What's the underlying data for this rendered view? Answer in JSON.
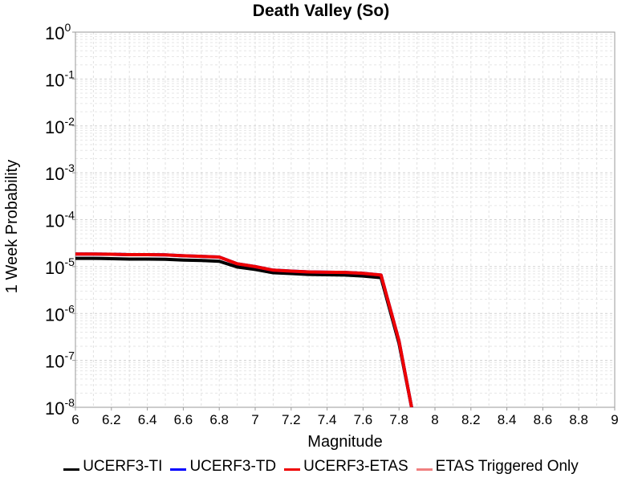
{
  "chart_data": {
    "type": "line",
    "title": "Death Valley (So)",
    "xlabel": "Magnitude",
    "ylabel": "1 Week Probability",
    "xlim": [
      6,
      9
    ],
    "ylim": [
      1e-08,
      1
    ],
    "yscale": "log",
    "grid": true,
    "legend_position": "bottom",
    "x_ticks": [
      "6",
      "6.2",
      "6.4",
      "6.6",
      "6.8",
      "7",
      "7.2",
      "7.4",
      "7.6",
      "7.8",
      "8",
      "8.2",
      "8.4",
      "8.6",
      "8.8",
      "9"
    ],
    "y_ticks": [
      {
        "base": "10",
        "exp": "0"
      },
      {
        "base": "10",
        "exp": "-1"
      },
      {
        "base": "10",
        "exp": "-2"
      },
      {
        "base": "10",
        "exp": "-3"
      },
      {
        "base": "10",
        "exp": "-4"
      },
      {
        "base": "10",
        "exp": "-5"
      },
      {
        "base": "10",
        "exp": "-6"
      },
      {
        "base": "10",
        "exp": "-7"
      },
      {
        "base": "10",
        "exp": "-8"
      }
    ],
    "series": [
      {
        "name": "UCERF3-TI",
        "color": "#000000",
        "x": [
          6.0,
          6.1,
          6.2,
          6.3,
          6.4,
          6.5,
          6.6,
          6.7,
          6.8,
          6.9,
          7.0,
          7.1,
          7.2,
          7.3,
          7.4,
          7.5,
          7.6,
          7.7,
          7.8,
          7.87
        ],
        "y": [
          1.5e-05,
          1.5e-05,
          1.48e-05,
          1.45e-05,
          1.45e-05,
          1.43e-05,
          1.38e-05,
          1.35e-05,
          1.3e-05,
          9.8e-06,
          8.7e-06,
          7.4e-06,
          7.1e-06,
          6.8e-06,
          6.7e-06,
          6.6e-06,
          6.3e-06,
          5.8e-06,
          2.3e-07,
          1e-08
        ]
      },
      {
        "name": "UCERF3-TD",
        "color": "#0000ff",
        "x": [
          6.0,
          6.1,
          6.2,
          6.3,
          6.4,
          6.5,
          6.6,
          6.7,
          6.8,
          6.9,
          7.0,
          7.1,
          7.2,
          7.3,
          7.4,
          7.5,
          7.6,
          7.7,
          7.8,
          7.87
        ],
        "y": [
          1.85e-05,
          1.85e-05,
          1.83e-05,
          1.8e-05,
          1.8e-05,
          1.78e-05,
          1.7e-05,
          1.65e-05,
          1.6e-05,
          1.15e-05,
          1e-05,
          8.4e-06,
          8e-06,
          7.7e-06,
          7.6e-06,
          7.5e-06,
          7.2e-06,
          6.6e-06,
          2.6e-07,
          1e-08
        ]
      },
      {
        "name": "UCERF3-ETAS",
        "color": "#ee0000",
        "x": [
          6.0,
          6.1,
          6.2,
          6.3,
          6.4,
          6.5,
          6.6,
          6.7,
          6.8,
          6.9,
          7.0,
          7.1,
          7.2,
          7.3,
          7.4,
          7.5,
          7.6,
          7.7,
          7.8,
          7.87
        ],
        "y": [
          1.85e-05,
          1.85e-05,
          1.83e-05,
          1.8e-05,
          1.8e-05,
          1.78e-05,
          1.7e-05,
          1.65e-05,
          1.6e-05,
          1.15e-05,
          1e-05,
          8.4e-06,
          8e-06,
          7.7e-06,
          7.6e-06,
          7.5e-06,
          7.2e-06,
          6.6e-06,
          2.6e-07,
          1e-08
        ]
      },
      {
        "name": "ETAS Triggered Only",
        "color": "#f08080",
        "x": [],
        "y": []
      }
    ]
  }
}
